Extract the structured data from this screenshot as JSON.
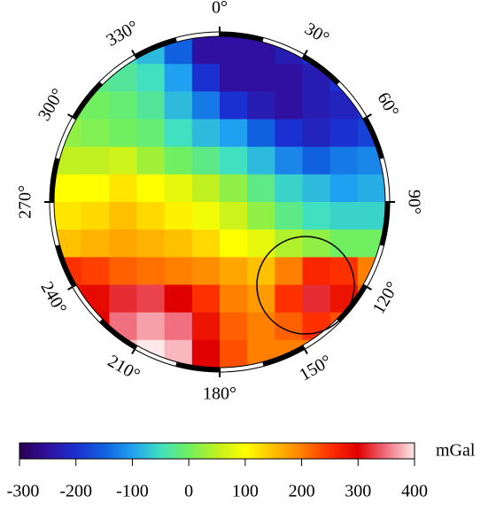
{
  "chart_data": {
    "type": "polar_heatmap",
    "angles": [
      {
        "value": 0,
        "label": "0°"
      },
      {
        "value": 30,
        "label": "30°"
      },
      {
        "value": 60,
        "label": "60°"
      },
      {
        "value": 90,
        "label": "90°"
      },
      {
        "value": 120,
        "label": "120°"
      },
      {
        "value": 150,
        "label": "150°"
      },
      {
        "value": 180,
        "label": "180°"
      },
      {
        "value": 210,
        "label": "210°"
      },
      {
        "value": 240,
        "label": "240°"
      },
      {
        "value": 270,
        "label": "270°"
      },
      {
        "value": 300,
        "label": "300°"
      },
      {
        "value": 330,
        "label": "330°"
      }
    ],
    "values": [
      [
        -50,
        -50,
        -50,
        -80,
        -150,
        -250,
        -250,
        -250,
        -230,
        -200,
        -200,
        -200
      ],
      [
        -20,
        -20,
        -30,
        -50,
        -100,
        -200,
        -250,
        -250,
        -250,
        -230,
        -200,
        -200
      ],
      [
        0,
        0,
        -10,
        -30,
        -80,
        -130,
        -200,
        -230,
        -250,
        -230,
        -220,
        -200
      ],
      [
        20,
        10,
        0,
        -10,
        -50,
        -80,
        -100,
        -150,
        -200,
        -220,
        -200,
        -180
      ],
      [
        50,
        50,
        60,
        30,
        0,
        -20,
        -50,
        -80,
        -120,
        -150,
        -130,
        -120
      ],
      [
        100,
        100,
        120,
        100,
        80,
        50,
        20,
        -20,
        -60,
        -80,
        -100,
        -90
      ],
      [
        120,
        130,
        150,
        130,
        110,
        90,
        60,
        20,
        -20,
        -50,
        -60,
        -60
      ],
      [
        150,
        160,
        170,
        160,
        150,
        130,
        100,
        80,
        40,
        20,
        0,
        0
      ],
      [
        250,
        240,
        220,
        210,
        200,
        190,
        170,
        150,
        200,
        260,
        250,
        200
      ],
      [
        280,
        290,
        320,
        330,
        300,
        250,
        200,
        180,
        250,
        320,
        280,
        220
      ],
      [
        280,
        300,
        350,
        370,
        350,
        280,
        220,
        200,
        220,
        250,
        230,
        200
      ],
      [
        300,
        320,
        380,
        400,
        380,
        300,
        230,
        200,
        200,
        200,
        200,
        200
      ]
    ],
    "colormap": [
      "#2a0050",
      "#3010a0",
      "#1a30d0",
      "#1060e0",
      "#20a0f0",
      "#40e0c0",
      "#70f060",
      "#c0f020",
      "#ffff00",
      "#ffc000",
      "#ff8000",
      "#ff3000",
      "#e00000",
      "#f07080",
      "#ffe8e8"
    ],
    "colorbar": {
      "label": "mGal",
      "clim": [
        -300,
        400
      ],
      "ticks": [
        -300,
        -200,
        -100,
        0,
        100,
        200,
        300,
        400
      ]
    }
  }
}
